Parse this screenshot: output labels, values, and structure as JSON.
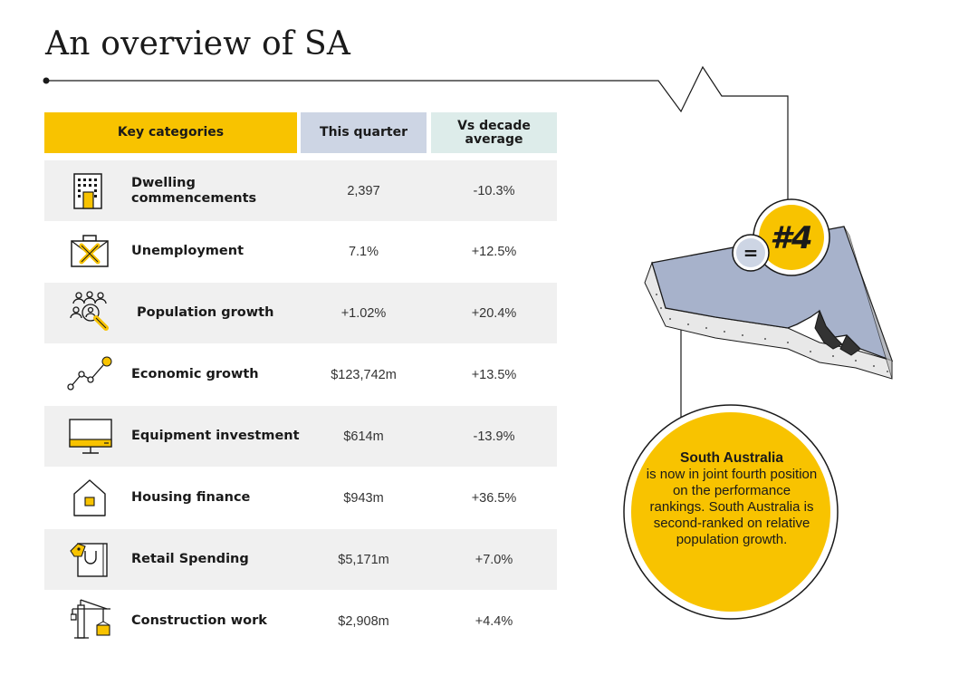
{
  "title": "An overview of SA",
  "headers": {
    "key": "Key categories",
    "quarter": "This quarter",
    "decade": "Vs decade average"
  },
  "rows": [
    {
      "label": "Dwelling commencements",
      "quarter": "2,397",
      "decade": "-10.3%",
      "icon": "building-icon"
    },
    {
      "label": "Unemployment",
      "quarter": "7.1%",
      "decade": "+12.5%",
      "icon": "briefcase-x-icon"
    },
    {
      "label": "Population growth",
      "quarter": "+1.02%",
      "decade": "+20.4%",
      "icon": "people-magnifier-icon"
    },
    {
      "label": "Economic growth",
      "quarter": "$123,742m",
      "decade": "+13.5%",
      "icon": "line-graph-icon"
    },
    {
      "label": "Equipment investment",
      "quarter": "$614m",
      "decade": "-13.9%",
      "icon": "monitor-icon"
    },
    {
      "label": "Housing finance",
      "quarter": "$943m",
      "decade": "+36.5%",
      "icon": "house-icon"
    },
    {
      "label": "Retail Spending",
      "quarter": "$5,171m",
      "decade": "+7.0%",
      "icon": "shopping-bag-icon"
    },
    {
      "label": "Construction work",
      "quarter": "$2,908m",
      "decade": "+4.4%",
      "icon": "crane-icon"
    }
  ],
  "rank": {
    "equal_sign": "=",
    "position": "#4"
  },
  "callout": {
    "heading": "South Australia",
    "body": "is now in joint fourth position on the performance rankings. South Australia is second-ranked on relative population growth."
  },
  "colors": {
    "yellow": "#F8C300",
    "quarter_header": "#CDD5E4",
    "decade_header": "#DDECEA",
    "map_fill": "#A7B2CB",
    "row_shade": "#F0F0F0"
  }
}
